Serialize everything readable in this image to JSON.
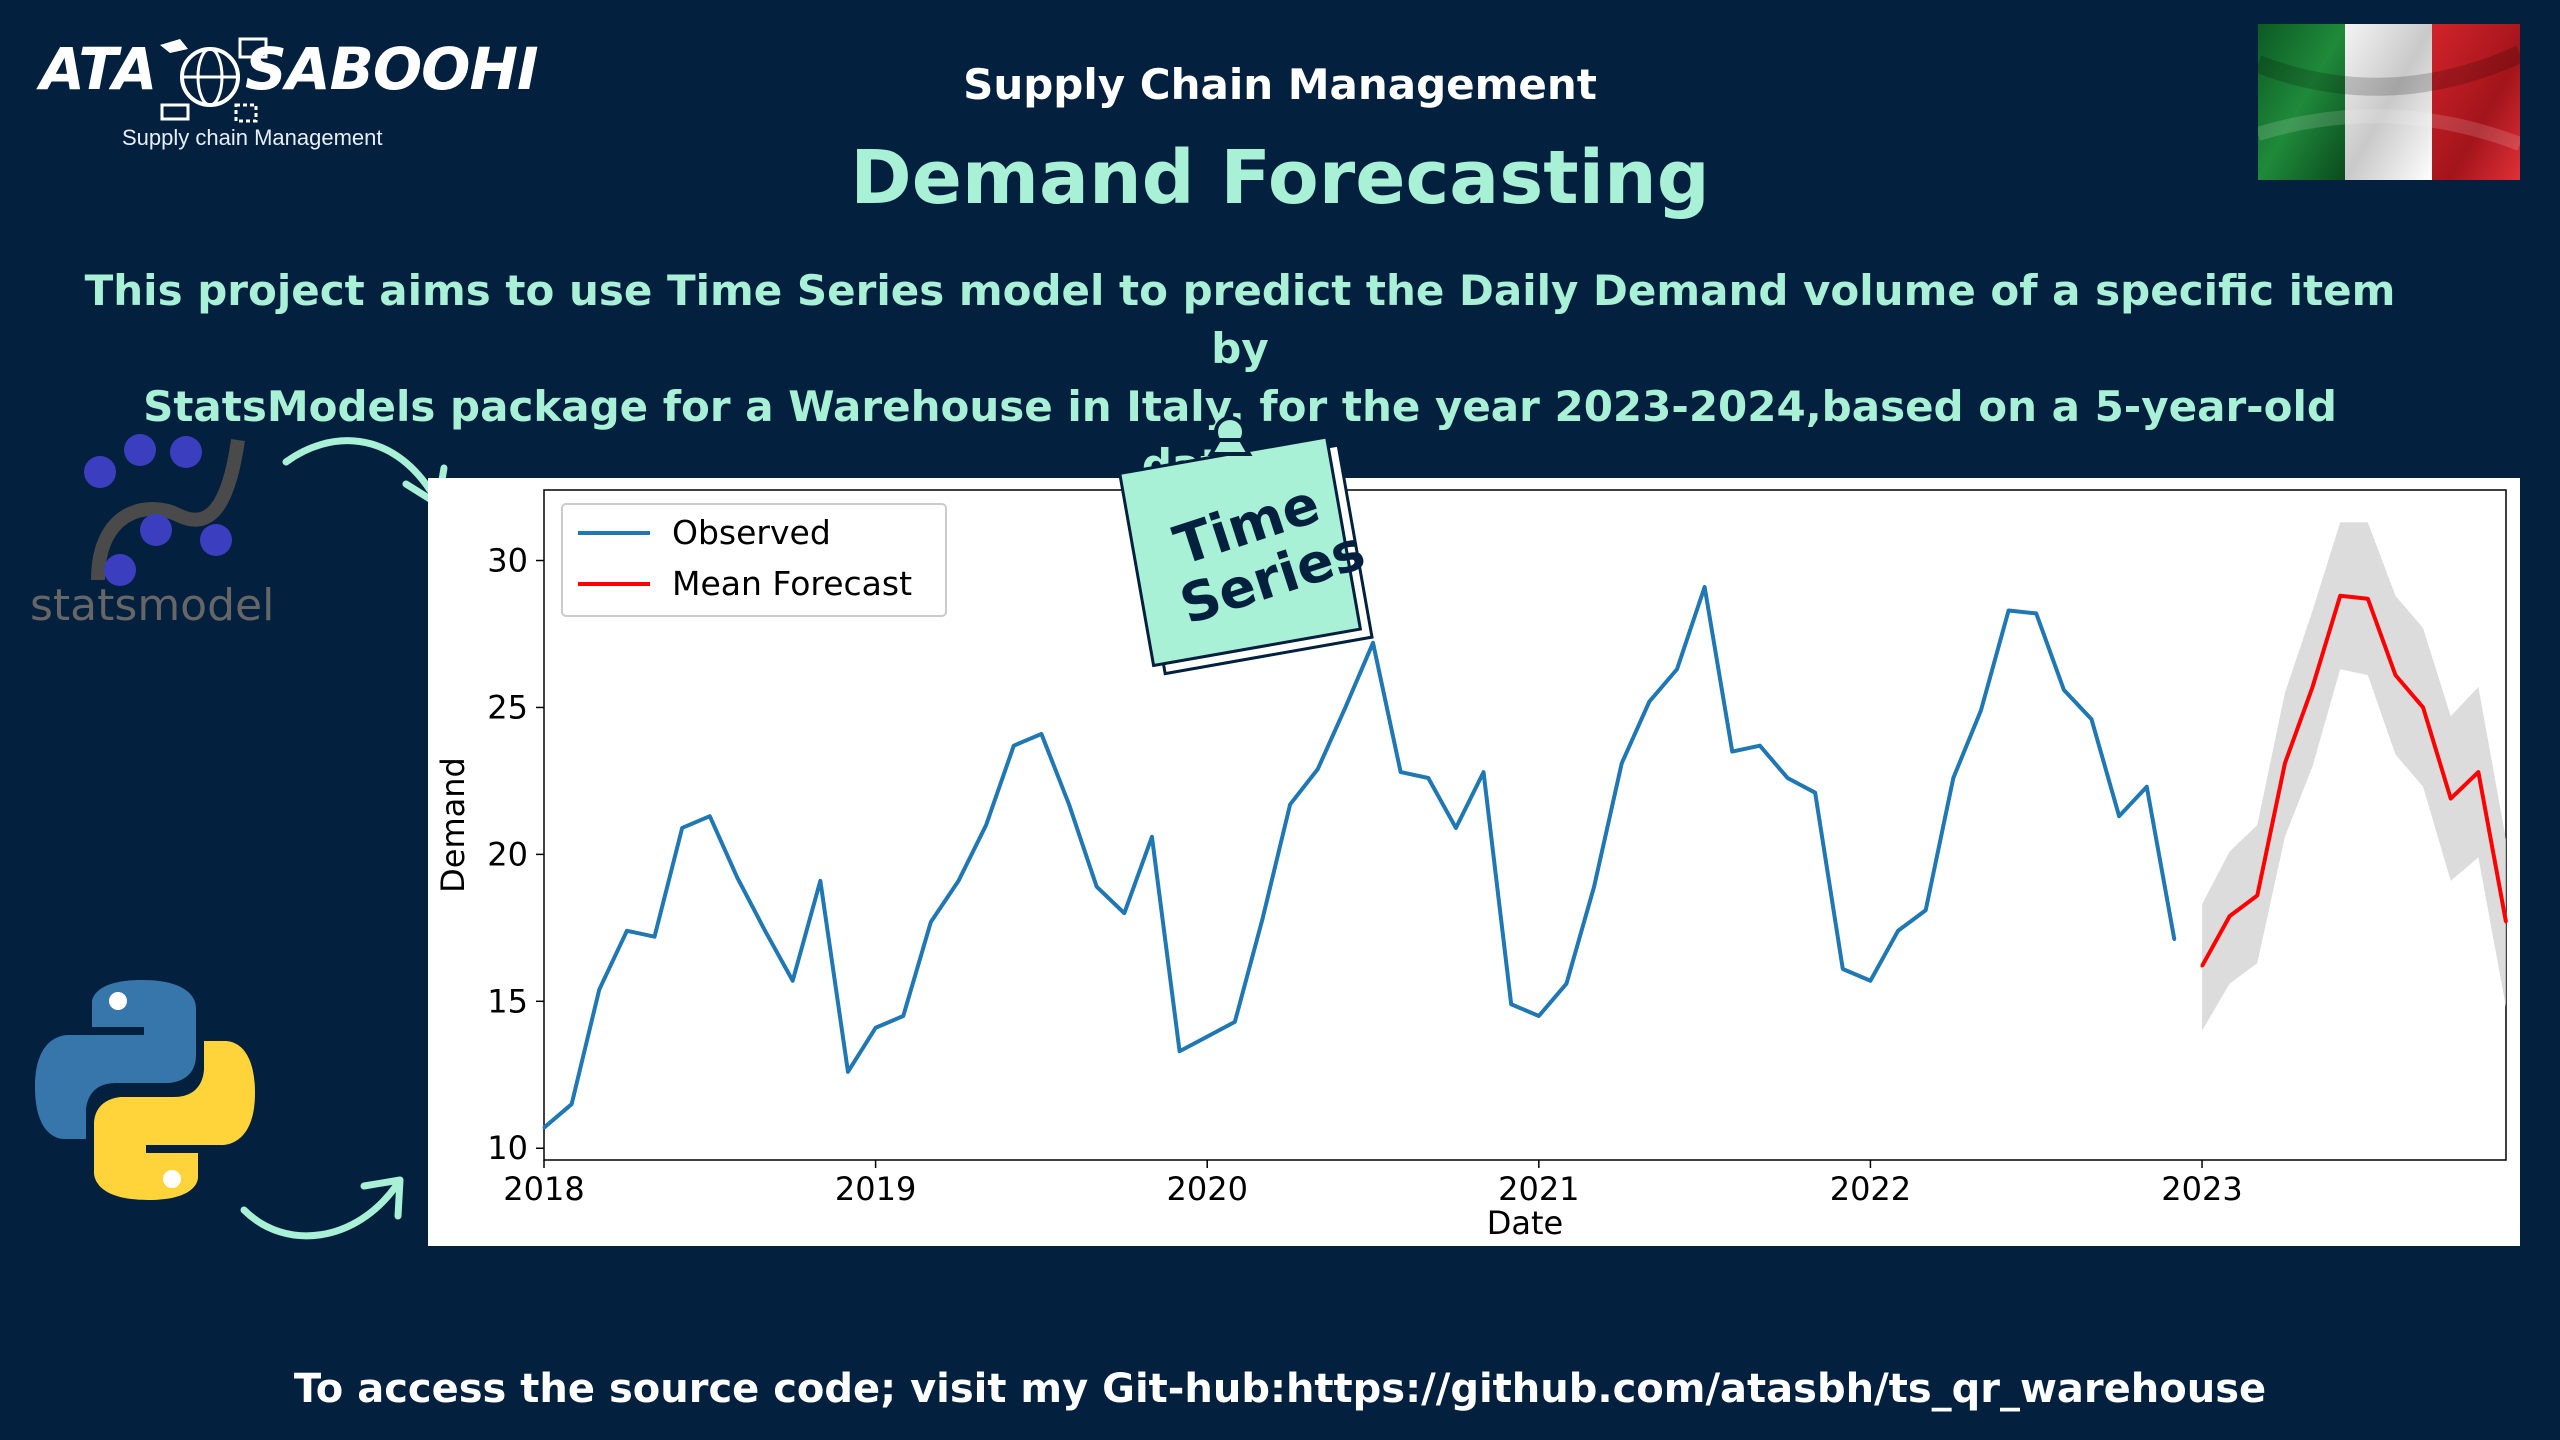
{
  "brand": {
    "left_word": "ATA",
    "right_word": "SABOOHI",
    "subtitle": "Supply chain Management"
  },
  "header": {
    "kicker": "Supply Chain Management",
    "title": "Demand Forecasting"
  },
  "description": {
    "line1": "This project aims to use Time Series model to predict the Daily Demand volume of a specific item by",
    "line2": "StatsModels package for a Warehouse in Italy, for the year 2023-2024,based on  a 5-year-old dataset."
  },
  "sticker": {
    "line1": "Time",
    "line2": "Series"
  },
  "statsmodel_logo": {
    "text": "statsmodel"
  },
  "footer": {
    "text": "To access the source code; visit my Git-hub:https://github.com/atasbh/ts_qr_warehouse"
  },
  "icons": {
    "flag": "italy-flag",
    "python": "python-logo-icon",
    "statsmodel": "statsmodel-logo-icon"
  },
  "colors": {
    "background": "#03203f",
    "accent": "#a8f0d6",
    "observed": "#1f77b4",
    "forecast": "#ff0000",
    "band": "#d3d3d3"
  },
  "chart_data": {
    "type": "line",
    "xlabel": "Date",
    "ylabel": "Demand",
    "x_ticks": [
      "2018",
      "2019",
      "2020",
      "2021",
      "2022",
      "2023"
    ],
    "y_ticks": [
      "10",
      "15",
      "20",
      "25",
      "30"
    ],
    "ylim": [
      9.6,
      32.4
    ],
    "xlim": [
      "2018-01",
      "2023-12"
    ],
    "legend": {
      "position": "top-left",
      "entries": [
        "Observed",
        "Mean Forecast"
      ]
    },
    "series": [
      {
        "name": "Observed",
        "x": [
          "2018-01",
          "2018-02",
          "2018-03",
          "2018-04",
          "2018-05",
          "2018-06",
          "2018-07",
          "2018-08",
          "2018-09",
          "2018-10",
          "2018-11",
          "2018-12",
          "2019-01",
          "2019-02",
          "2019-03",
          "2019-04",
          "2019-05",
          "2019-06",
          "2019-07",
          "2019-08",
          "2019-09",
          "2019-10",
          "2019-11",
          "2019-12",
          "2020-01",
          "2020-02",
          "2020-03",
          "2020-04",
          "2020-05",
          "2020-06",
          "2020-07",
          "2020-08",
          "2020-09",
          "2020-10",
          "2020-11",
          "2020-12",
          "2021-01",
          "2021-02",
          "2021-03",
          "2021-04",
          "2021-05",
          "2021-06",
          "2021-07",
          "2021-08",
          "2021-09",
          "2021-10",
          "2021-11",
          "2021-12",
          "2022-01",
          "2022-02",
          "2022-03",
          "2022-04",
          "2022-05",
          "2022-06",
          "2022-07",
          "2022-08",
          "2022-09",
          "2022-10",
          "2022-11",
          "2022-12"
        ],
        "values": [
          10.7,
          11.5,
          15.4,
          17.4,
          17.2,
          20.9,
          21.3,
          19.2,
          17.4,
          15.7,
          19.1,
          12.6,
          14.1,
          14.5,
          17.7,
          19.1,
          21.0,
          23.7,
          24.1,
          21.7,
          18.9,
          18.0,
          20.6,
          13.3,
          13.8,
          14.3,
          17.8,
          21.7,
          22.9,
          25.0,
          27.2,
          22.8,
          22.6,
          20.9,
          22.8,
          14.9,
          14.5,
          15.6,
          18.9,
          23.1,
          25.2,
          26.3,
          29.1,
          23.5,
          23.7,
          22.6,
          22.1,
          16.1,
          15.7,
          17.4,
          18.1,
          22.6,
          24.9,
          28.3,
          28.2,
          25.6,
          24.6,
          21.3,
          22.3,
          17.1
        ]
      },
      {
        "name": "Mean Forecast",
        "x": [
          "2023-01",
          "2023-02",
          "2023-03",
          "2023-04",
          "2023-05",
          "2023-06",
          "2023-07",
          "2023-08",
          "2023-09",
          "2023-10",
          "2023-11",
          "2023-12"
        ],
        "values": [
          16.2,
          17.9,
          18.6,
          23.1,
          25.7,
          28.8,
          28.7,
          26.1,
          25.0,
          21.9,
          22.8,
          17.7
        ],
        "lower": [
          14.0,
          15.6,
          16.3,
          20.6,
          23.0,
          26.3,
          26.1,
          23.4,
          22.3,
          19.1,
          19.9,
          14.8
        ],
        "upper": [
          18.3,
          20.1,
          21.0,
          25.5,
          28.3,
          31.3,
          31.3,
          28.8,
          27.7,
          24.7,
          25.7,
          20.5
        ]
      }
    ]
  }
}
